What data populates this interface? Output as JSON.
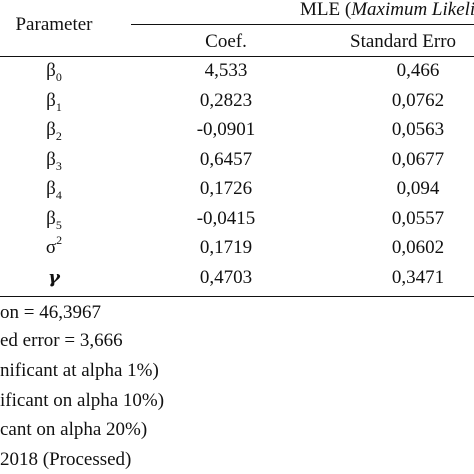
{
  "header": {
    "parameter_label": "Parameter",
    "mle_prefix": "MLE (",
    "mle_italic": "Maximum Likelihoo",
    "coef_label": "Coef.",
    "stderr_label": "Standard Erro"
  },
  "rows": [
    {
      "symbol": "β",
      "sub": "0",
      "sup": "",
      "coef": "4,533",
      "stderr": "0,466"
    },
    {
      "symbol": "β",
      "sub": "1",
      "sup": "",
      "coef": "0,2823",
      "stderr": "0,0762"
    },
    {
      "symbol": "β",
      "sub": "2",
      "sup": "",
      "coef": "-0,0901",
      "stderr": "0,0563"
    },
    {
      "symbol": "β",
      "sub": "3",
      "sup": "",
      "coef": "0,6457",
      "stderr": "0,0677"
    },
    {
      "symbol": "β",
      "sub": "4",
      "sup": "",
      "coef": "0,1726",
      "stderr": "0,094"
    },
    {
      "symbol": "β",
      "sub": "5",
      "sup": "",
      "coef": "-0,0415",
      "stderr": "0,0557"
    },
    {
      "symbol": "σ",
      "sub": "",
      "sup": "2",
      "coef": "0,1719",
      "stderr": "0,0602"
    },
    {
      "symbol": "γ",
      "sub": "",
      "sup": "",
      "coef": "0,4703",
      "stderr": "0,3471"
    }
  ],
  "notes": [
    "on = 46,3967",
    "ed error = 3,666",
    "nificant at alpha 1%)",
    "ificant on alpha 10%)",
    "cant on alpha 20%)",
    "2018 (Processed)"
  ]
}
